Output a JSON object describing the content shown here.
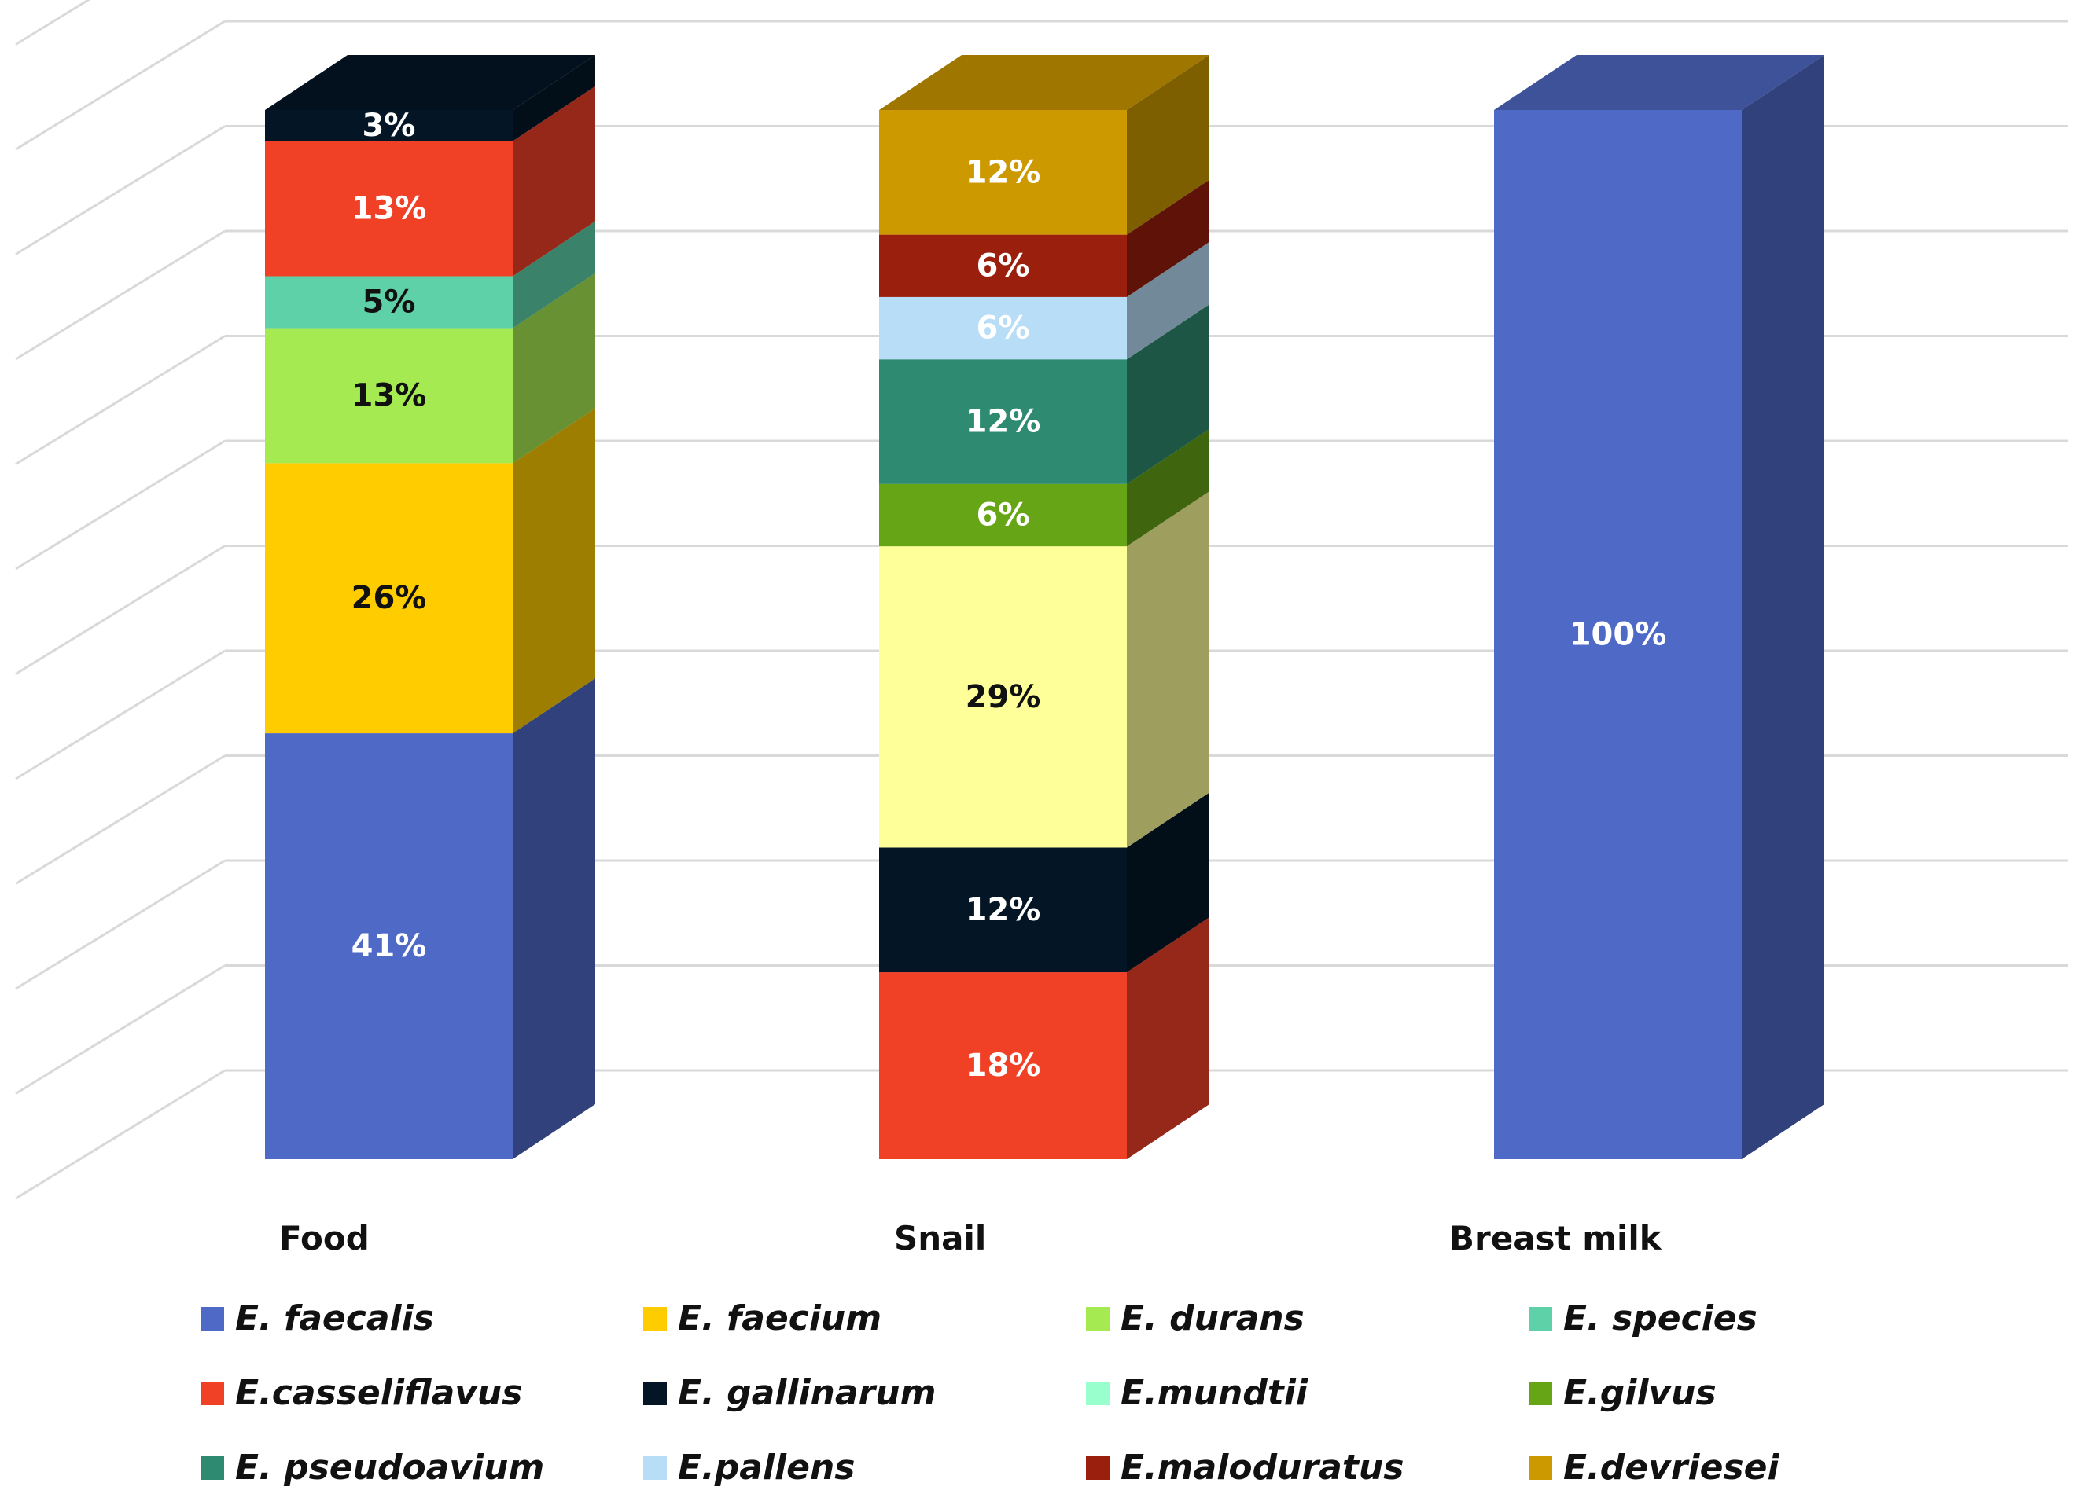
{
  "chart_data": {
    "type": "bar",
    "stacked": true,
    "style": "3d-stacked-100-percent",
    "title": "",
    "xlabel": "",
    "ylabel": "",
    "ylim": [
      0,
      100
    ],
    "grid": true,
    "legend_position": "bottom",
    "categories": [
      "Food",
      "Snail",
      "Breast milk"
    ],
    "stacks": [
      {
        "category": "Food",
        "segments": [
          {
            "species": "E. faecalis",
            "value": 41,
            "label": "41%"
          },
          {
            "species": "E. faecium",
            "value": 26,
            "label": "26%"
          },
          {
            "species": "E. durans",
            "value": 13,
            "label": "13%"
          },
          {
            "species": "E. species",
            "value": 5,
            "label": "5%"
          },
          {
            "species": "E.casseliflavus",
            "value": 13,
            "label": "13%"
          },
          {
            "species": "E. gallinarum",
            "value": 3,
            "label": "3%"
          }
        ]
      },
      {
        "category": "Snail",
        "segments": [
          {
            "species": "E.casseliflavus",
            "value": 18,
            "label": "18%"
          },
          {
            "species": "E. gallinarum",
            "value": 12,
            "label": "12%"
          },
          {
            "species": "E.mundtii",
            "value": 29,
            "label": "29%"
          },
          {
            "species": "E.gilvus",
            "value": 6,
            "label": "6%"
          },
          {
            "species": "E. pseudoavium",
            "value": 12,
            "label": "12%"
          },
          {
            "species": "E.pallens",
            "value": 6,
            "label": "6%"
          },
          {
            "species": "E.maloduratus",
            "value": 6,
            "label": "6%"
          },
          {
            "species": "E.devriesei",
            "value": 12,
            "label": "12%"
          }
        ]
      },
      {
        "category": "Breast milk",
        "segments": [
          {
            "species": "E. faecalis",
            "value": 100,
            "label": "100%"
          }
        ]
      }
    ],
    "legend": [
      {
        "name": "E. faecalis",
        "color": "#4F69C6"
      },
      {
        "name": "E. faecium",
        "color": "#FFCC00"
      },
      {
        "name": "E. durans",
        "color": "#A6EA52"
      },
      {
        "name": "E. species",
        "color": "#5ED1A9"
      },
      {
        "name": "E.casseliflavus",
        "color": "#F04126"
      },
      {
        "name": "E. gallinarum",
        "color": "#041626"
      },
      {
        "name": "E.mundtii",
        "color": "#FFFF99"
      },
      {
        "name": "E.gilvus",
        "color": "#66A516"
      },
      {
        "name": "E. pseudoavium",
        "color": "#2E8A70"
      },
      {
        "name": "E.pallens",
        "color": "#B8DDF7"
      },
      {
        "name": "E.maloduratus",
        "color": "#9A1F0D"
      },
      {
        "name": "E.devriesei",
        "color": "#CC9900"
      }
    ],
    "legend_swatch_overrides": {
      "E.mundtii": "#99FFCC"
    }
  }
}
